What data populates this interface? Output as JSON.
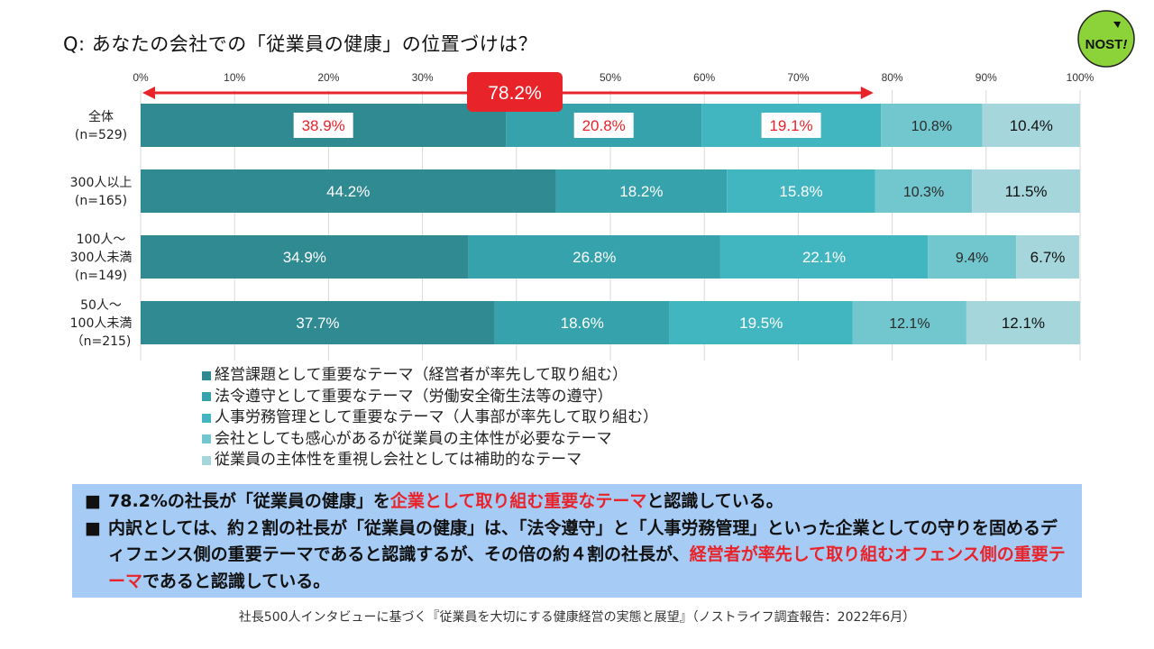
{
  "title": "Q: あなたの会社での「従業員の健康」の位置づけは？",
  "logo": {
    "text_main": "NOST",
    "text_bang": "!",
    "icon": "play-triangle-icon"
  },
  "colors": {
    "series": [
      "#2f8a92",
      "#36a2ab",
      "#42b6c0",
      "#72c6cd",
      "#a5d6dc"
    ],
    "highlight": "#e8232a",
    "logo_fill": "#8cd33a",
    "summary_bg": "#a6cbf5"
  },
  "chart_data": {
    "type": "bar",
    "orientation": "horizontal",
    "stacked": true,
    "categories": [
      [
        "全体",
        "(n=529)"
      ],
      [
        "300人以上",
        "(n=165)"
      ],
      [
        "100人～",
        "300人未満",
        "(n=149)"
      ],
      [
        "50人～",
        "100人未満",
        "（n=215)"
      ]
    ],
    "series": [
      {
        "name": "経営課題として重要なテーマ（経営者が率先して取り組む）",
        "values": [
          38.9,
          44.2,
          34.9,
          37.7
        ]
      },
      {
        "name": "法令遵守として重要なテーマ（労働安全衛生法等の遵守）",
        "values": [
          20.8,
          18.2,
          26.8,
          18.6
        ]
      },
      {
        "name": "人事労務管理として重要なテーマ（人事部が率先して取り組む）",
        "values": [
          19.1,
          15.8,
          22.1,
          19.5
        ]
      },
      {
        "name": "会社としても感心があるが従業員の主体性が必要なテーマ",
        "values": [
          10.8,
          10.3,
          9.4,
          12.1
        ]
      },
      {
        "name": "従業員の主体性を重視し会社としては補助的なテーマ",
        "values": [
          10.4,
          11.5,
          6.7,
          12.1
        ]
      }
    ],
    "xlim": [
      0,
      100
    ],
    "xticks": [
      "0%",
      "10%",
      "20%",
      "30%",
      "40%",
      "50%",
      "60%",
      "70%",
      "80%",
      "90%",
      "100%"
    ],
    "gridlines": true,
    "highlighted_row": 0,
    "highlighted_series": [
      0,
      1,
      2
    ],
    "annotation": {
      "label": "78.2%",
      "from": 0,
      "to": 78.2,
      "row": 0
    }
  },
  "summary": {
    "bullets": [
      [
        {
          "text": "78.2%の社長が「従業員の健康」を",
          "hl": false
        },
        {
          "text": "企業として取り組む重要なテーマ",
          "hl": true
        },
        {
          "text": "と認識している。",
          "hl": false
        }
      ],
      [
        {
          "text": "内訳としては、約２割の社長が「従業員の健康」は、「法令遵守」と「人事労務管理」といった企業としての守りを固めるディフェンス側の重要テーマであると認識するが、その倍の約４割の社長が、",
          "hl": false
        },
        {
          "text": "経営者が率先して取り組むオフェンス側の重要テーマ",
          "hl": true
        },
        {
          "text": "であると認識している。",
          "hl": false
        }
      ]
    ],
    "bullet_symbol": "■"
  },
  "footer": "社長500人インタビューに基づく『従業員を大切にする健康経営の実態と展望』（ノストライフ調査報告：2022年6月）"
}
